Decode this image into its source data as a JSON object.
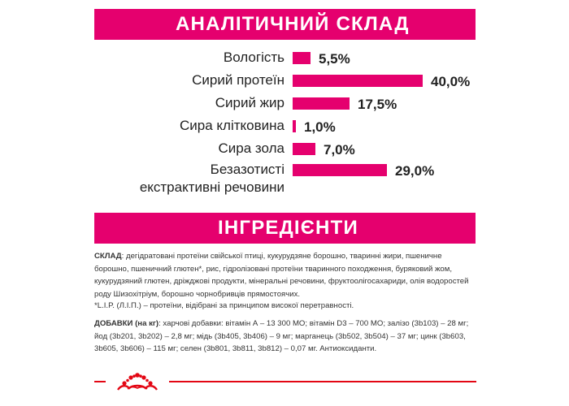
{
  "analysis": {
    "title": "АНАЛІТИЧНИЙ СКЛАД",
    "rows": [
      {
        "label": "Вологість",
        "value": "5,5%",
        "percent": 5.5
      },
      {
        "label": "Сирий протеїн",
        "value": "40,0%",
        "percent": 40.0
      },
      {
        "label": "Сирий жир",
        "value": "17,5%",
        "percent": 17.5
      },
      {
        "label": "Сира клітковина",
        "value": "1,0%",
        "percent": 1.0
      },
      {
        "label": "Сира зола",
        "value": "7,0%",
        "percent": 7.0
      },
      {
        "label_line1": "Безазотисті",
        "label_line2": "екстрактивні речовини",
        "value": "29,0%",
        "percent": 29.0
      }
    ],
    "bar_color": "#e5006e"
  },
  "ingredients": {
    "title": "ІНГРЕДІЄНТИ",
    "composition_label": "СКЛАД",
    "composition_text": ": дегідратовані протеїни свійської птиці, кукурудзяне борошно, тваринні жири, пшеничне борошно, пшеничний глютен*, рис, гідролізовані протеїни тваринного походження, буряковий жом, кукурудзяний глютен, дріжджові продукти, мінеральні речовини, фруктоолігосахариди, олія водоростей роду Шизохітріум, борошно чорнобривців прямостоячих.",
    "footnote": "*L.I.P. (Л.І.П.) – протеїни, відібрані за принципом високої перетравності.",
    "additives_label": "ДОБАВКИ (на кг)",
    "additives_text": ": харчові добавки: вітамін А – 13 300 МО; вітамін D3 – 700 МО; залізо (3b103) – 28 мг; йод (3b201, 3b202) – 2,8 мг; мідь (3b405, 3b406) – 9 мг; марганець (3b502, 3b504) – 37 мг; цинк (3b603, 3b605, 3b606) – 115 мг; селен (3b801, 3b811, 3b812) – 0,07 мг. Антиоксиданти."
  },
  "colors": {
    "accent": "#e5006e",
    "footer_red": "#e30613"
  },
  "logo_icon": "royal-canin-crown-icon"
}
